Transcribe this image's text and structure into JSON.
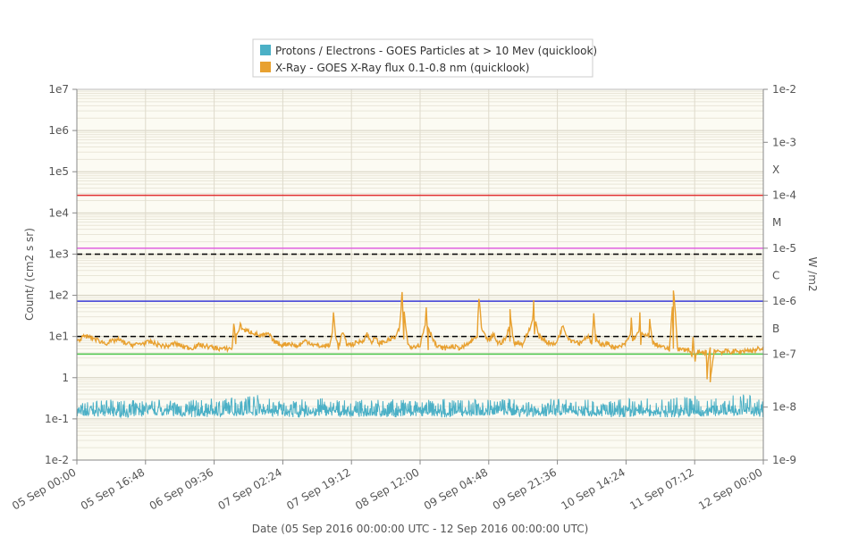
{
  "chart_data": {
    "type": "line",
    "legend": {
      "placement": "top-center",
      "items": [
        {
          "label": "Protons / Electrons - GOES Particles at > 10 Mev (quicklook)",
          "color": "#4bb0c6"
        },
        {
          "label": "X-Ray - GOES X-Ray flux 0.1-0.8 nm (quicklook)",
          "color": "#e8a130"
        }
      ]
    },
    "xlabel": "Date (05 Sep 2016 00:00:00 UTC - 12 Sep 2016 00:00:00 UTC)",
    "x_ticks": [
      "05 Sep 00:00",
      "05 Sep 16:48",
      "06 Sep 09:36",
      "07 Sep 02:24",
      "07 Sep 19:12",
      "08 Sep 12:00",
      "09 Sep 04:48",
      "09 Sep 21:36",
      "10 Sep 14:24",
      "11 Sep 07:12",
      "12 Sep 00:00"
    ],
    "xlim_hours": [
      0,
      168
    ],
    "left_axis": {
      "label": "Count/ (cm2 s sr)",
      "scale": "log",
      "ylim": [
        0.01,
        10000000
      ],
      "ticks": [
        "1e7",
        "1e6",
        "1e5",
        "1e4",
        "1e3",
        "1e2",
        "1e1",
        "1",
        "1e-1",
        "1e-2"
      ]
    },
    "right_axis": {
      "label": "W /m2",
      "scale": "log",
      "ylim": [
        1e-09,
        0.01
      ],
      "ticks": [
        "1e-2",
        "1e-3",
        "1e-4",
        "1e-5",
        "1e-6",
        "1e-7",
        "1e-8",
        "1e-9"
      ],
      "flare_classes": [
        {
          "label": "X",
          "value": 0.0003162
        },
        {
          "label": "M",
          "value": 3.162e-05
        },
        {
          "label": "C",
          "value": 3.162e-06
        },
        {
          "label": "B",
          "value": 3.162e-07
        }
      ]
    },
    "grid": true,
    "reference_lines": [
      {
        "axis": "right",
        "value": 0.0001,
        "color": "#e03030",
        "style": "solid"
      },
      {
        "axis": "right",
        "value": 1e-05,
        "color": "#e060e0",
        "style": "solid"
      },
      {
        "axis": "left",
        "value": 1000,
        "color": "#000000",
        "style": "dashed"
      },
      {
        "axis": "right",
        "value": 1e-06,
        "color": "#3a3ad8",
        "style": "solid"
      },
      {
        "axis": "left",
        "value": 10,
        "color": "#000000",
        "style": "dashed"
      },
      {
        "axis": "right",
        "value": 1e-07,
        "color": "#50c850",
        "style": "solid"
      }
    ],
    "series": [
      {
        "name": "Protons / Electrons - GOES Particles at > 10 Mev (quicklook)",
        "axis": "left",
        "color": "#4bb0c6",
        "hours": [
          0,
          6,
          12,
          18,
          24,
          30,
          36,
          42,
          48,
          54,
          60,
          66,
          72,
          78,
          84,
          90,
          96,
          102,
          108,
          114,
          120,
          126,
          132,
          138,
          144,
          150,
          156,
          162,
          168
        ],
        "values": [
          0.15,
          0.16,
          0.15,
          0.17,
          0.16,
          0.15,
          0.16,
          0.17,
          0.16,
          0.15,
          0.16,
          0.15,
          0.16,
          0.15,
          0.16,
          0.15,
          0.16,
          0.17,
          0.16,
          0.15,
          0.16,
          0.16,
          0.15,
          0.16,
          0.15,
          0.16,
          0.16,
          0.17,
          0.15
        ],
        "max_values": [
          0.25,
          0.3,
          0.28,
          0.3,
          0.28,
          0.3,
          0.32,
          0.45,
          0.3,
          0.3,
          0.32,
          0.28,
          0.3,
          0.3,
          0.28,
          0.32,
          0.3,
          0.3,
          0.33,
          0.3,
          0.32,
          0.3,
          0.3,
          0.32,
          0.3,
          0.38,
          0.35,
          0.42,
          0.3
        ]
      },
      {
        "name": "X-Ray - GOES X-Ray flux 0.1-0.8 nm (quicklook)",
        "axis": "right",
        "color": "#e8a130",
        "points": [
          [
            0,
            1.8e-07
          ],
          [
            2,
            2.2e-07
          ],
          [
            4,
            2e-07
          ],
          [
            7,
            1.6e-07
          ],
          [
            10,
            1.9e-07
          ],
          [
            12,
            1.6e-07
          ],
          [
            14,
            1.5e-07
          ],
          [
            16,
            1.6e-07
          ],
          [
            18,
            1.7e-07
          ],
          [
            20,
            1.5e-07
          ],
          [
            22,
            1.4e-07
          ],
          [
            24,
            1.6e-07
          ],
          [
            26,
            1.4e-07
          ],
          [
            28,
            1.3e-07
          ],
          [
            30,
            1.5e-07
          ],
          [
            32,
            1.4e-07
          ],
          [
            34,
            1.3e-07
          ],
          [
            36,
            1.25e-07
          ],
          [
            38,
            1.3e-07
          ],
          [
            39,
            2.2e-07
          ],
          [
            40,
            3.5e-07
          ],
          [
            41,
            2.8e-07
          ],
          [
            43,
            2.6e-07
          ],
          [
            45,
            2.2e-07
          ],
          [
            47,
            2.4e-07
          ],
          [
            48,
            1.8e-07
          ],
          [
            50,
            1.5e-07
          ],
          [
            52,
            1.6e-07
          ],
          [
            54,
            1.4e-07
          ],
          [
            56,
            1.8e-07
          ],
          [
            58,
            1.5e-07
          ],
          [
            60,
            1.4e-07
          ],
          [
            62,
            1.5e-07
          ],
          [
            64,
            1.3e-07
          ],
          [
            65,
            2.6e-07
          ],
          [
            66,
            1.6e-07
          ],
          [
            67,
            1.5e-07
          ],
          [
            68,
            1.6e-07
          ],
          [
            70,
            1.8e-07
          ],
          [
            71,
            2.4e-07
          ],
          [
            72,
            1.7e-07
          ],
          [
            73,
            2e-07
          ],
          [
            74,
            1.6e-07
          ],
          [
            76,
            1.8e-07
          ],
          [
            78,
            2.1e-07
          ],
          [
            79,
            3.1e-07
          ],
          [
            80,
            1.8e-07
          ],
          [
            81,
            1.5e-07
          ],
          [
            82,
            1.4e-07
          ],
          [
            84,
            1.5e-07
          ],
          [
            86,
            1.3e-07
          ],
          [
            88,
            1.4e-07
          ],
          [
            90,
            1.3e-07
          ],
          [
            92,
            1.4e-07
          ],
          [
            94,
            1.3e-07
          ],
          [
            96,
            1.6e-07
          ],
          [
            98,
            2.2e-07
          ],
          [
            99,
            3e-07
          ],
          [
            100,
            2.1e-07
          ],
          [
            101,
            1.8e-07
          ],
          [
            102,
            2.4e-07
          ],
          [
            103,
            1.6e-07
          ],
          [
            104,
            1.7e-07
          ],
          [
            105,
            2e-07
          ],
          [
            106,
            1.9e-07
          ],
          [
            107,
            1.6e-07
          ],
          [
            108,
            1.7e-07
          ],
          [
            109,
            1.5e-07
          ],
          [
            110,
            2.2e-07
          ],
          [
            111,
            3.2e-07
          ],
          [
            112,
            2.6e-07
          ],
          [
            113,
            2.2e-07
          ],
          [
            114,
            2e-07
          ],
          [
            115,
            1.7e-07
          ],
          [
            116,
            1.6e-07
          ],
          [
            117,
            1.5e-07
          ],
          [
            118,
            2.2e-07
          ],
          [
            119,
            3.5e-07
          ],
          [
            120,
            2.2e-07
          ],
          [
            121,
            1.8e-07
          ],
          [
            122,
            1.8e-07
          ],
          [
            123,
            1.6e-07
          ],
          [
            124,
            1.9e-07
          ],
          [
            125,
            2.2e-07
          ],
          [
            126,
            1.6e-07
          ],
          [
            127,
            1.7e-07
          ],
          [
            128,
            1.6e-07
          ],
          [
            129,
            1.5e-07
          ],
          [
            130,
            1.6e-07
          ],
          [
            131,
            1.4e-07
          ],
          [
            132,
            1.3e-07
          ],
          [
            133,
            1.4e-07
          ],
          [
            134,
            1.5e-07
          ],
          [
            135,
            2e-07
          ],
          [
            136,
            1.8e-07
          ],
          [
            137,
            2.2e-07
          ],
          [
            138,
            1.6e-07
          ],
          [
            139,
            2.2e-07
          ],
          [
            140,
            2e-07
          ],
          [
            141,
            1.6e-07
          ],
          [
            142,
            1.5e-07
          ],
          [
            143,
            1.4e-07
          ],
          [
            144,
            1.3e-07
          ],
          [
            145,
            1.2e-07
          ],
          [
            146,
            1.3e-07
          ],
          [
            147,
            1.25e-07
          ],
          [
            148,
            1.2e-07
          ],
          [
            149,
            1.25e-07
          ],
          [
            150,
            1.2e-07
          ],
          [
            151,
            1.15e-07
          ],
          [
            152,
            1.1e-07
          ],
          [
            153,
            1.05e-07
          ],
          [
            154,
            1.1e-07
          ],
          [
            155,
            1.3e-07
          ],
          [
            156,
            1.2e-07
          ],
          [
            157,
            1.15e-07
          ],
          [
            158,
            1.1e-07
          ],
          [
            159,
            1.15e-07
          ],
          [
            160,
            1.1e-07
          ],
          [
            161,
            1.15e-07
          ],
          [
            162,
            1.1e-07
          ],
          [
            163,
            1.15e-07
          ],
          [
            164,
            1.2e-07
          ],
          [
            165,
            1.15e-07
          ],
          [
            166,
            1.2e-07
          ],
          [
            167,
            1.3e-07
          ],
          [
            168,
            1.2e-07
          ]
        ],
        "peaks": [
          [
            38.4,
            4e-07
          ],
          [
            62.8,
            6e-07
          ],
          [
            79.6,
            1.6e-06
          ],
          [
            85.5,
            8e-07
          ],
          [
            98.4,
            1.1e-06
          ],
          [
            106.0,
            7e-07
          ],
          [
            111.8,
            1e-06
          ],
          [
            126.5,
            5.5e-07
          ],
          [
            135.7,
            5e-07
          ],
          [
            137.8,
            6e-07
          ],
          [
            140.2,
            5e-07
          ],
          [
            146.0,
            1.6e-06
          ],
          [
            150.8,
            2e-07
          ],
          [
            154.5,
            8e-08
          ]
        ]
      }
    ]
  }
}
